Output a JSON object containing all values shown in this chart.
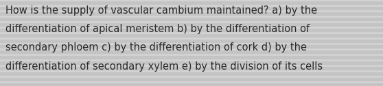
{
  "lines": [
    "How is the supply of vascular cambium maintained? a) by the",
    "differentiation of apical meristem b) by the differentiation of",
    "secondary phloem c) by the differentiation of cork d) by the",
    "differentiation of secondary xylem e) by the division of its cells"
  ],
  "background_color": "#d4d4d4",
  "stripe_color": "#c4c4c4",
  "text_color": "#2a2a2a",
  "font_size": 10.5,
  "fig_width": 5.58,
  "fig_height": 1.26,
  "dpi": 100
}
